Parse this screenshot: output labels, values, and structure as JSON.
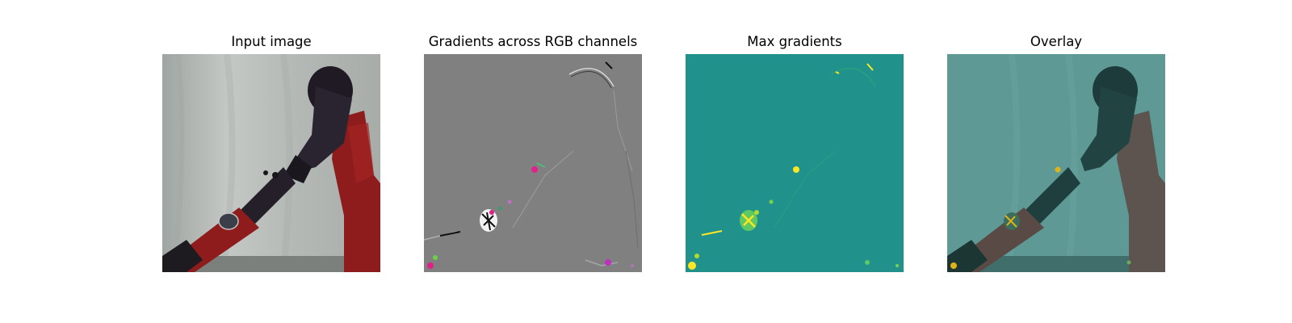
{
  "panels": [
    {
      "id": "input",
      "title": "Input image"
    },
    {
      "id": "gradients",
      "title": "Gradients across RGB channels"
    },
    {
      "id": "max",
      "title": "Max gradients"
    },
    {
      "id": "overlay",
      "title": "Overlay"
    }
  ],
  "colors": {
    "background": "#ffffff",
    "curtain": "#b9bdba",
    "robot_red": "#8e1c1c",
    "robot_dark": "#1f1a24",
    "gradient_gray": "#808080",
    "gradient_magenta": "#e0218a",
    "viridis_teal": "#21918c",
    "viridis_yellow": "#fde725",
    "viridis_green": "#5ec962",
    "overlay_tint": "#2a8a86"
  }
}
